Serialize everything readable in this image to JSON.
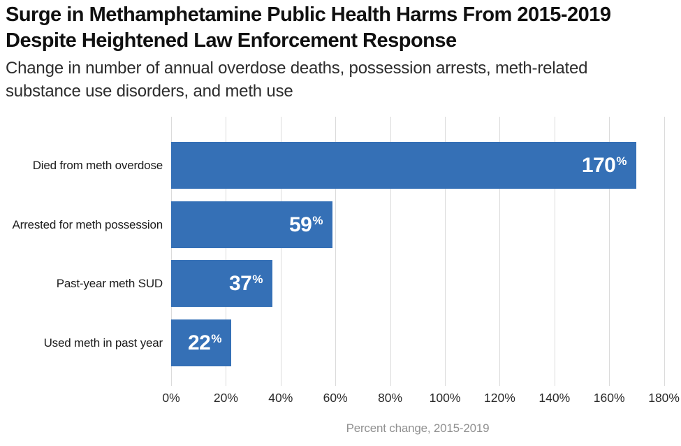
{
  "header": {
    "title": "Surge in Methamphetamine Public Health Harms From 2015-2019\nDespite Heightened Law Enforcement Response",
    "subtitle": "Change in number of annual overdose deaths, possession arrests, meth-related\nsubstance use disorders, and meth use"
  },
  "chart_data": {
    "type": "bar",
    "orientation": "horizontal",
    "title": "Surge in Methamphetamine Public Health Harms From 2015-2019 Despite Heightened Law Enforcement Response",
    "subtitle": "Change in number of annual overdose deaths, possession arrests, meth-related substance use disorders, and meth use",
    "categories": [
      "Died from meth overdose",
      "Arrested for meth possession",
      "Past-year meth SUD",
      "Used meth in past year"
    ],
    "values": [
      170,
      59,
      37,
      22
    ],
    "value_suffix": "%",
    "xlabel": "Percent change, 2015-2019",
    "ylabel": "",
    "x_ticks": [
      "0%",
      "20%",
      "40%",
      "60%",
      "80%",
      "100%",
      "120%",
      "140%",
      "160%",
      "180%"
    ],
    "x_tick_values": [
      0,
      20,
      40,
      60,
      80,
      100,
      120,
      140,
      160,
      180
    ],
    "xlim": [
      0,
      180
    ],
    "grid": "vertical-gridlines-only",
    "legend": "none",
    "colors": {
      "bar": "#3570b6",
      "gridline": "#dbdbdb",
      "bar_value_text": "#ffffff",
      "title_text": "#101010",
      "subtitle_text": "#2d2d2d",
      "category_text": "#1c1c1c",
      "tick_text": "#2b2b2b",
      "axis_caption_text": "#909090"
    }
  }
}
